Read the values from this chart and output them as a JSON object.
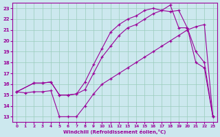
{
  "bg_color": "#cce8ee",
  "grid_color": "#99ccbb",
  "line_color": "#990099",
  "xlabel": "Windchill (Refroidissement éolien,°C)",
  "xlim": [
    -0.5,
    23.5
  ],
  "ylim": [
    12.5,
    23.5
  ],
  "x_ticks": [
    0,
    1,
    2,
    3,
    4,
    5,
    6,
    7,
    8,
    9,
    10,
    11,
    12,
    13,
    14,
    15,
    16,
    17,
    18,
    19,
    20,
    21,
    22,
    23
  ],
  "y_ticks": [
    13,
    14,
    15,
    16,
    17,
    18,
    19,
    20,
    21,
    22,
    23
  ],
  "curve1_x": [
    0,
    1,
    2,
    3,
    4,
    5,
    6,
    7,
    8,
    9,
    10,
    11,
    12,
    13,
    14,
    15,
    16,
    17,
    18,
    19,
    20,
    21,
    22,
    23
  ],
  "curve1_y": [
    15.3,
    15.2,
    15.3,
    15.3,
    15.4,
    13.0,
    13.0,
    13.0,
    14.0,
    15.1,
    16.0,
    16.5,
    17.0,
    17.5,
    18.0,
    18.5,
    19.0,
    19.5,
    20.0,
    20.5,
    21.0,
    21.3,
    21.5,
    13.0
  ],
  "curve2_x": [
    0,
    2,
    3,
    4,
    5,
    6,
    7,
    8,
    9,
    10,
    11,
    12,
    13,
    14,
    15,
    16,
    17,
    18,
    19,
    20,
    21,
    22,
    23
  ],
  "curve2_y": [
    15.3,
    16.1,
    16.1,
    16.2,
    15.0,
    15.0,
    15.1,
    15.5,
    17.0,
    18.5,
    19.5,
    20.5,
    21.2,
    21.5,
    22.0,
    22.5,
    22.8,
    23.3,
    21.2,
    21.2,
    18.0,
    17.5,
    13.0
  ],
  "curve3_x": [
    0,
    2,
    3,
    4,
    5,
    6,
    7,
    8,
    9,
    10,
    11,
    12,
    13,
    14,
    15,
    16,
    17,
    18,
    19,
    20,
    21,
    22,
    23
  ],
  "curve3_y": [
    15.3,
    16.1,
    16.1,
    16.2,
    15.0,
    15.0,
    15.1,
    16.2,
    17.8,
    19.3,
    20.8,
    21.5,
    22.0,
    22.3,
    22.8,
    23.0,
    22.8,
    22.7,
    22.8,
    21.2,
    19.0,
    18.0,
    13.0
  ]
}
